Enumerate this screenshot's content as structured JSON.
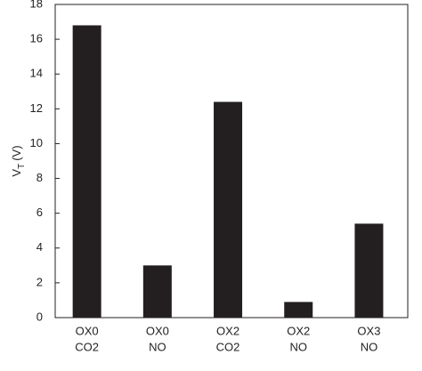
{
  "chart_data": {
    "type": "bar",
    "y_label": {
      "main": "V",
      "sub": "T",
      "unit": "(V)"
    },
    "categories": [
      [
        "OX0",
        "CO2"
      ],
      [
        "OX0",
        "NO"
      ],
      [
        "OX2",
        "CO2"
      ],
      [
        "OX2",
        "NO"
      ],
      [
        "OX3",
        "NO"
      ]
    ],
    "values": [
      16.8,
      3.0,
      12.4,
      0.9,
      5.4
    ],
    "color": "#231f20",
    "ylim": [
      0,
      18
    ],
    "yticks": [
      0,
      2,
      4,
      6,
      8,
      10,
      12,
      14,
      16,
      18
    ],
    "grid": false
  }
}
